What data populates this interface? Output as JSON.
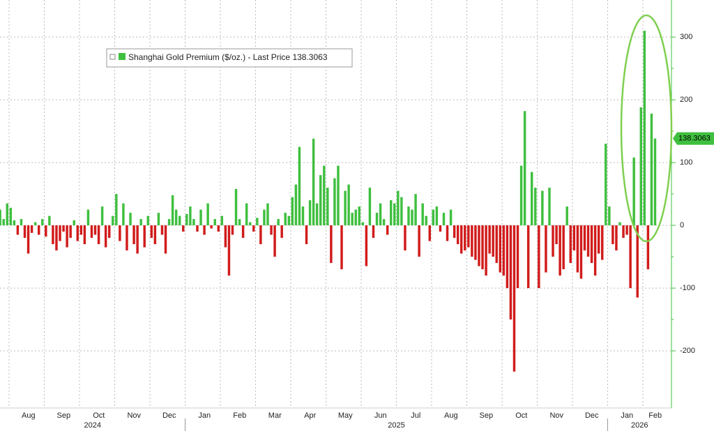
{
  "chart_data": {
    "type": "bar",
    "series": [
      {
        "name": "Shanghai Gold Premium ($/oz.)",
        "legend_suffix": "- Last Price",
        "colors": {
          "positive": "#3fbf3f",
          "negative": "#d11b1b"
        },
        "values": [
          25,
          10,
          35,
          28,
          8,
          -15,
          10,
          -20,
          -45,
          -12,
          5,
          -15,
          10,
          -18,
          15,
          -30,
          -40,
          -25,
          -10,
          -35,
          -20,
          8,
          -25,
          -15,
          -30,
          25,
          -20,
          -15,
          -30,
          30,
          -35,
          -20,
          15,
          50,
          -25,
          35,
          -40,
          20,
          -30,
          -45,
          10,
          -35,
          15,
          -20,
          -30,
          20,
          -15,
          -45,
          10,
          48,
          25,
          15,
          -10,
          18,
          30,
          10,
          -10,
          25,
          -15,
          35,
          -5,
          10,
          -10,
          15,
          -35,
          -80,
          -15,
          58,
          10,
          -20,
          35,
          5,
          -10,
          12,
          -30,
          25,
          35,
          -15,
          -50,
          10,
          -20,
          20,
          15,
          45,
          65,
          125,
          30,
          -30,
          40,
          138,
          35,
          80,
          95,
          60,
          -60,
          75,
          95,
          -70,
          55,
          65,
          20,
          25,
          30,
          5,
          -65,
          60,
          -20,
          20,
          35,
          10,
          -15,
          40,
          35,
          55,
          45,
          -40,
          30,
          25,
          50,
          -50,
          35,
          15,
          -25,
          25,
          30,
          -10,
          20,
          -25,
          25,
          -20,
          -30,
          -45,
          -40,
          -35,
          -50,
          -55,
          -65,
          -70,
          -80,
          -45,
          -50,
          -60,
          -75,
          -80,
          -100,
          -150,
          -233,
          -100,
          95,
          182,
          -100,
          85,
          60,
          -100,
          55,
          -75,
          60,
          -50,
          -30,
          -80,
          -70,
          30,
          -60,
          -40,
          -75,
          -85,
          -40,
          -50,
          -60,
          -80,
          -45,
          -55,
          130,
          30,
          -30,
          -40,
          5,
          -20,
          -15,
          -100,
          108,
          -115,
          188,
          310,
          -70,
          178,
          138.3063
        ]
      }
    ],
    "categories": [
      null,
      null,
      null,
      null,
      null,
      null,
      null,
      null,
      "Aug",
      null,
      null,
      null,
      null,
      null,
      null,
      null,
      null,
      null,
      "Sep",
      null,
      null,
      null,
      null,
      null,
      null,
      null,
      null,
      null,
      "Oct",
      null,
      null,
      null,
      null,
      null,
      null,
      null,
      null,
      null,
      "Nov",
      null,
      null,
      null,
      null,
      null,
      null,
      null,
      null,
      null,
      "Dec",
      null,
      null,
      null,
      null,
      null,
      null,
      null,
      null,
      null,
      "Jan",
      null,
      null,
      null,
      null,
      null,
      null,
      null,
      null,
      null,
      "Feb",
      null,
      null,
      null,
      null,
      null,
      null,
      null,
      null,
      null,
      "Mar",
      null,
      null,
      null,
      null,
      null,
      null,
      null,
      null,
      null,
      "Apr",
      null,
      null,
      null,
      null,
      null,
      null,
      null,
      null,
      null,
      "May",
      null,
      null,
      null,
      null,
      null,
      null,
      null,
      null,
      null,
      "Jun",
      null,
      null,
      null,
      null,
      null,
      null,
      null,
      null,
      null,
      "Jul",
      null,
      null,
      null,
      null,
      null,
      null,
      null,
      null,
      null,
      "Aug",
      null,
      null,
      null,
      null,
      null,
      null,
      null,
      null,
      null,
      "Sep",
      null,
      null,
      null,
      null,
      null,
      null,
      null,
      null,
      null,
      "Oct",
      null,
      null,
      null,
      null,
      null,
      null,
      null,
      null,
      null,
      "Nov",
      null,
      null,
      null,
      null,
      null,
      null,
      null,
      null,
      null,
      "Dec",
      null,
      null,
      null,
      null,
      null,
      null,
      null,
      null,
      null,
      "Jan",
      null,
      null,
      null,
      null,
      null,
      null,
      null,
      "Feb"
    ],
    "years": [
      "2024",
      "2025",
      "2026"
    ],
    "ylim": [
      -291,
      359
    ],
    "yticks": [
      -200,
      -100,
      0,
      100,
      200,
      300
    ],
    "grid": true
  }
}
